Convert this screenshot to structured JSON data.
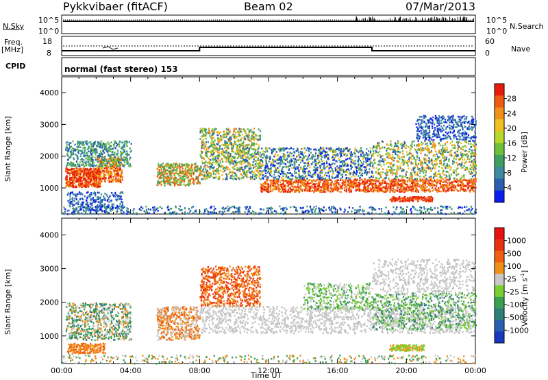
{
  "header": {
    "station": "Pykkvibaer (fitACF)",
    "beam": "Beam 02",
    "date": "07/Mar/2013"
  },
  "panels": {
    "nsky": {
      "left_label": "N.Sky",
      "right_label": "N.Search",
      "y_ticks_left": [
        "10^5",
        "10^0"
      ],
      "y_ticks_right": [
        "10^5",
        "10^0"
      ]
    },
    "freq": {
      "left_label_1": "Freq.",
      "left_label_2": "[MHz]",
      "right_label": "Nave",
      "y_ticks_left": [
        "18",
        "8"
      ],
      "y_ticks_right": [
        "60",
        "0"
      ],
      "step_times_hours": [
        0,
        8,
        18,
        24
      ],
      "step_levels": [
        "low",
        "high",
        "low"
      ]
    },
    "cpid": {
      "label": "CPID",
      "mode_text": "normal (fast stereo) 153"
    }
  },
  "chart_data": [
    {
      "type": "heatmap",
      "name": "power",
      "ylabel": "Slant Range [km]",
      "xlabel": "",
      "xlim_hours": [
        0,
        24
      ],
      "ylim": [
        180,
        4500
      ],
      "y_ticks": [
        1000,
        2000,
        3000,
        4000
      ],
      "colorbar": {
        "label": "Power [dB]",
        "ticks": [
          "28",
          "24",
          "20",
          "16",
          "12",
          "8",
          "4"
        ],
        "range": [
          0,
          30
        ],
        "colors": [
          "#0a1cf0",
          "#2a5fb0",
          "#3f8aa0",
          "#3ea060",
          "#6fbf3a",
          "#b8d82a",
          "#f0c020",
          "#f09018",
          "#f05a10",
          "#e81a0a"
        ]
      }
    },
    {
      "type": "heatmap",
      "name": "velocity",
      "ylabel": "Slant Range [km]",
      "xlabel": "Time UT",
      "xlim_hours": [
        0,
        24
      ],
      "ylim": [
        180,
        4500
      ],
      "y_ticks": [
        1000,
        2000,
        3000,
        4000
      ],
      "x_ticks": [
        "00:00",
        "04:00",
        "08:00",
        "12:00",
        "16:00",
        "20:00",
        "00:00"
      ],
      "colorbar": {
        "label": "Velocity [m s",
        "label_sup": "-1",
        "label_end": "]",
        "ticks": [
          "1000",
          "500",
          "100",
          "25",
          "-25",
          "-100",
          "-500",
          "-1000"
        ],
        "colors": [
          "#1838c0",
          "#2a5fb0",
          "#2f7f78",
          "#3aa050",
          "#7ad030",
          "#c8c8c8",
          "#f09018",
          "#f06010",
          "#e83010",
          "#e81010"
        ]
      }
    }
  ]
}
